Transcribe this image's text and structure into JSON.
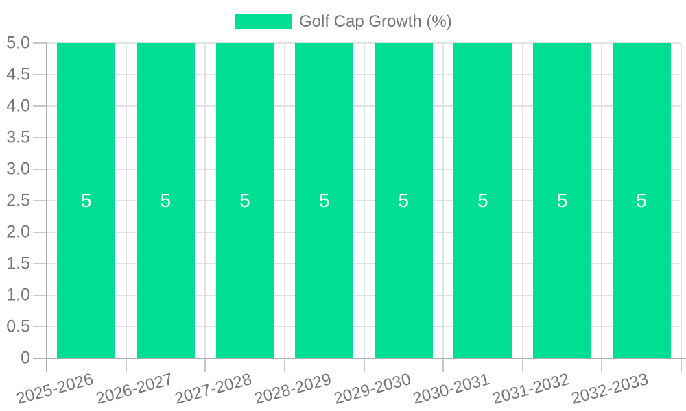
{
  "legend": {
    "label": "Golf Cap Growth (%)"
  },
  "chart_data": {
    "type": "bar",
    "categories": [
      "2025-2026",
      "2026-2027",
      "2027-2028",
      "2028-2029",
      "2029-2030",
      "2030-2031",
      "2031-2032",
      "2032-2033"
    ],
    "series": [
      {
        "name": "Golf Cap Growth (%)",
        "values": [
          5,
          5,
          5,
          5,
          5,
          5,
          5,
          5
        ]
      }
    ],
    "bar_value_labels": [
      "5",
      "5",
      "5",
      "5",
      "5",
      "5",
      "5",
      "5"
    ],
    "ylim": [
      0,
      5
    ],
    "ytick_step": 0.5,
    "yticks": [
      "0",
      "0.5",
      "1.0",
      "1.5",
      "2.0",
      "2.5",
      "3.0",
      "3.5",
      "4.0",
      "4.5",
      "5.0"
    ],
    "grid": true,
    "legend_position": "top-center"
  },
  "colors": {
    "bar": "#00DE94",
    "grid": "#e3e3e3",
    "axis": "#aeaeae",
    "tick": "#c9c9c9",
    "text": "#757575",
    "bar_label": "#ffffff",
    "background": "#ffffff"
  }
}
